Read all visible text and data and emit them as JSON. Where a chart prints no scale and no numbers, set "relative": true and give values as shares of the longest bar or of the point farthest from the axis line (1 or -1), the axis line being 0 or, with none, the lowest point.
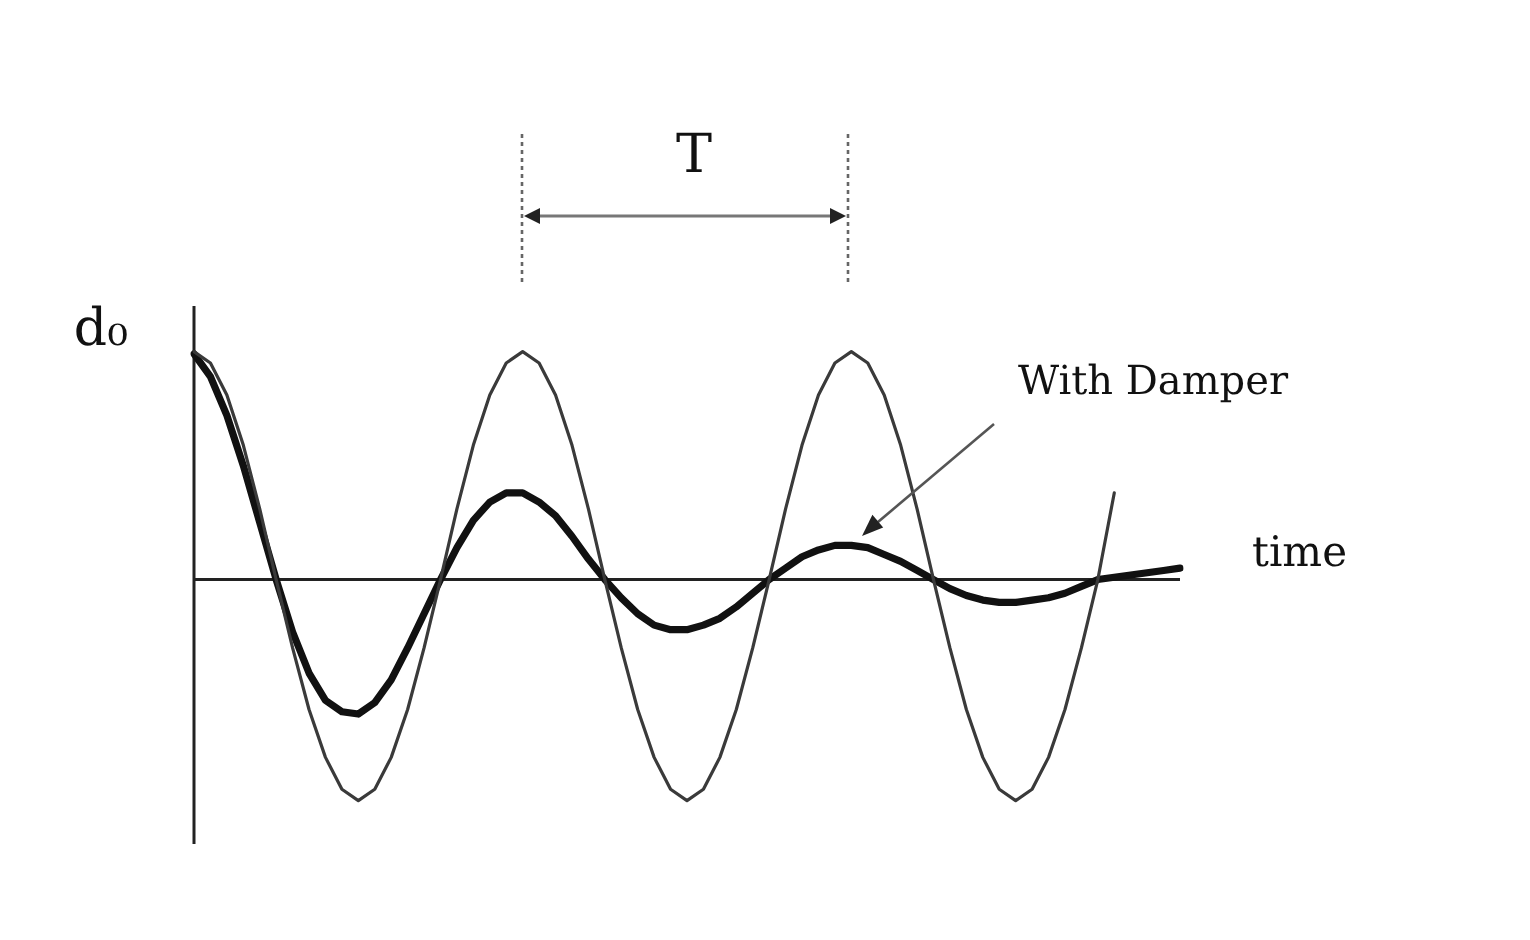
{
  "chart_data": {
    "type": "line",
    "relative": true,
    "ylabel": "d₀",
    "xlabel": "time",
    "annotations": [
      "T"
    ],
    "marker": "none",
    "line_style": "solid",
    "categories": [
      null,
      null,
      null,
      null,
      null,
      null,
      null,
      null,
      null,
      null,
      null,
      null,
      null,
      null,
      null,
      null,
      null,
      null,
      null,
      null,
      null,
      null,
      null,
      null,
      null,
      null,
      null,
      null,
      null,
      null,
      null,
      null,
      null,
      null,
      null,
      null,
      null,
      null,
      null,
      null,
      null,
      null,
      null,
      null,
      null,
      null,
      null,
      null,
      null,
      null,
      null,
      null,
      null,
      null,
      null,
      null,
      null,
      null,
      null,
      null,
      null
    ],
    "series": [
      {
        "color": "#3a3a3a",
        "values": [
          1.0,
          0.95,
          0.81,
          0.59,
          0.31,
          0.0,
          -0.3,
          -0.57,
          -0.78,
          -0.92,
          -0.97,
          -0.92,
          -0.78,
          -0.57,
          -0.3,
          0.0,
          0.31,
          0.59,
          0.81,
          0.95,
          1.0,
          0.95,
          0.81,
          0.59,
          0.31,
          0.0,
          -0.3,
          -0.57,
          -0.78,
          -0.92,
          -0.97,
          -0.92,
          -0.78,
          -0.57,
          -0.3,
          0.0,
          0.31,
          0.59,
          0.81,
          0.95,
          1.0,
          0.95,
          0.81,
          0.59,
          0.31,
          0.0,
          -0.3,
          -0.57,
          -0.78,
          -0.92,
          -0.97,
          -0.92,
          -0.78,
          -0.57,
          -0.3,
          0.0,
          0.38,
          null,
          null,
          null,
          null
        ]
      },
      {
        "name": "With Damper",
        "color": "#111111",
        "values": [
          0.99,
          0.89,
          0.72,
          0.5,
          0.25,
          0.0,
          -0.23,
          -0.41,
          -0.53,
          -0.58,
          -0.59,
          -0.54,
          -0.44,
          -0.3,
          -0.15,
          0.0,
          0.14,
          0.26,
          0.34,
          0.38,
          0.38,
          0.34,
          0.28,
          0.19,
          0.09,
          0.0,
          -0.08,
          -0.15,
          -0.2,
          -0.22,
          -0.22,
          -0.2,
          -0.17,
          -0.12,
          -0.06,
          0.0,
          0.05,
          0.1,
          0.13,
          0.15,
          0.15,
          0.14,
          0.11,
          0.08,
          0.04,
          0.0,
          -0.04,
          -0.07,
          -0.09,
          -0.1,
          -0.1,
          -0.09,
          -0.08,
          -0.06,
          -0.03,
          0.0,
          0.01,
          0.02,
          0.03,
          0.04,
          0.05
        ]
      }
    ]
  }
}
